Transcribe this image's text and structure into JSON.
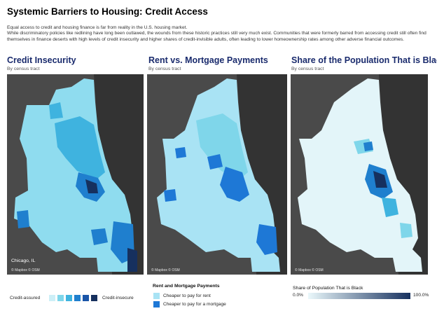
{
  "header": {
    "title": "Systemic Barriers to Housing: Credit Access",
    "intro_line1": "Equal access to credit and housing finance is far from reality in the U.S. housing market.",
    "intro_line2": "While discriminatory policies like redlining have long been outlawed, the wounds from these historic practices still very much exist. Communities that were formerly barred from accessing credit still often find themselves in finance deserts with high levels of credit insecurity and higher shares of credit-invisible adults, often leading to lower homeownership rates among other adverse financial outcomes."
  },
  "panels": [
    {
      "title": "Credit Insecurity",
      "subtitle": "By census tract",
      "place_label": "Chicago, IL",
      "credit": "© Mapbox © OSM"
    },
    {
      "title": "Rent vs. Mortgage Payments",
      "subtitle": "By census tract",
      "credit": "© Mapbox © OSM"
    },
    {
      "title": "Share of the Population That is Black",
      "subtitle": "By census tract",
      "credit": "© Mapbox © OSM"
    }
  ],
  "legend1": {
    "low_label": "Credit-assured",
    "high_label": "Credit-insecure",
    "colors": [
      "#cdeff7",
      "#7fd6ea",
      "#3fb3df",
      "#1f7fce",
      "#1a55a8",
      "#16305e"
    ]
  },
  "legend2": {
    "title": "Rent and Mortgage Payments",
    "items": [
      {
        "label": "Cheaper to pay for rent",
        "color": "#a9e3f4"
      },
      {
        "label": "Cheaper to pay for a mortgage",
        "color": "#1e78d6"
      }
    ]
  },
  "legend3": {
    "title": "Share of Population That is Black",
    "min_label": "0.0%",
    "max_label": "100.0%",
    "color_min": "#eaf8fb",
    "color_max": "#16305e"
  },
  "map_colors": {
    "land": "#4a4a4a",
    "lake": "#333333",
    "map1_base": "#8fdcef",
    "map2_base": "#a9e3f4",
    "map3_base": "#e3f5f9"
  }
}
